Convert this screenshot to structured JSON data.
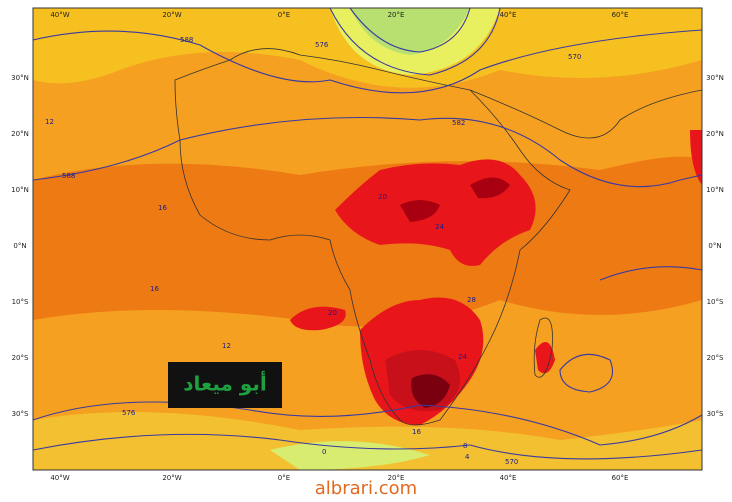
{
  "map": {
    "lon_labels": [
      "40°W",
      "20°W",
      "0°E",
      "20°E",
      "40°E",
      "60°E"
    ],
    "lat_labels": [
      "30°N",
      "20°N",
      "10°N",
      "0°N",
      "10°S",
      "20°S",
      "30°S"
    ],
    "contour_labels": [
      "588",
      "576",
      "582",
      "570",
      "12",
      "16",
      "16",
      "20",
      "24",
      "28",
      "24",
      "20",
      "12",
      "16",
      "8",
      "4",
      "0",
      "576",
      "570",
      "588"
    ],
    "watermark": "أبو ميعاد",
    "footer": "albrari.com"
  }
}
